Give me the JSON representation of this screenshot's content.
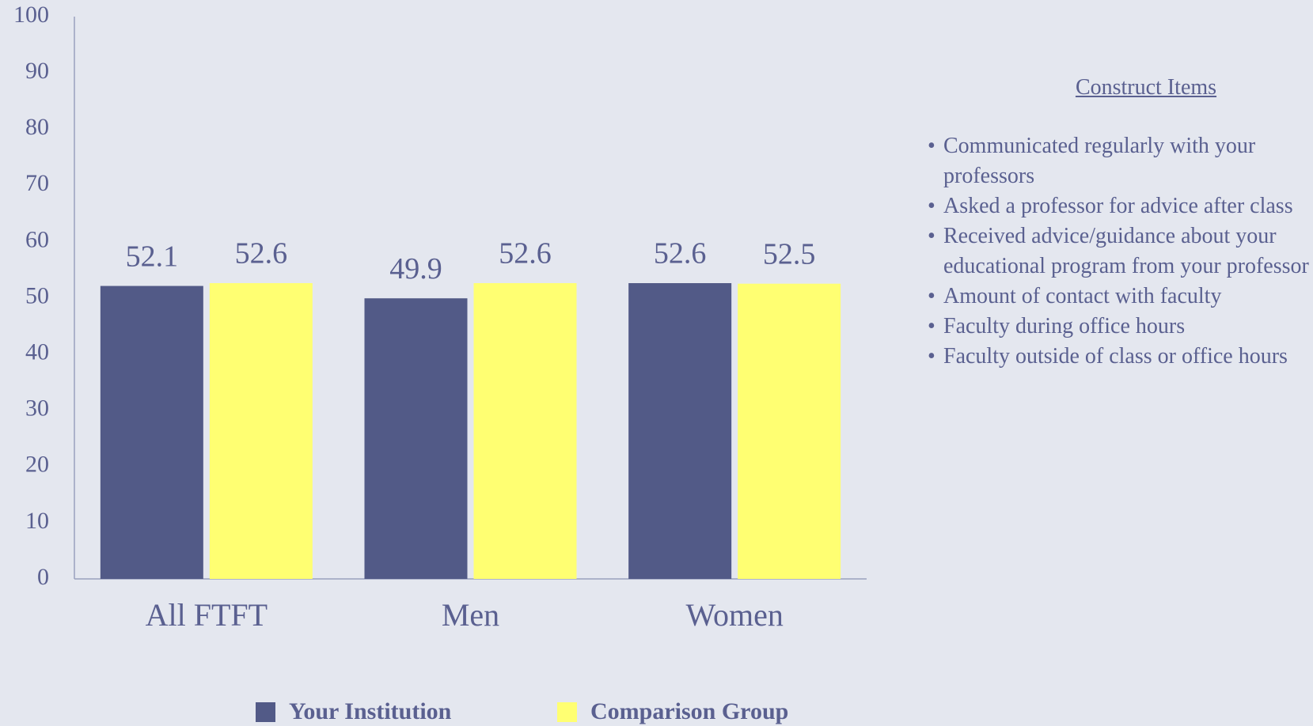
{
  "chart_data": {
    "type": "bar",
    "categories": [
      "All FTFT",
      "Men",
      "Women"
    ],
    "series": [
      {
        "name": "Your Institution",
        "color": "#525a87",
        "values": [
          52.1,
          49.9,
          52.6
        ]
      },
      {
        "name": "Comparison Group",
        "color": "#ffff72",
        "values": [
          52.6,
          52.6,
          52.5
        ]
      }
    ],
    "ylim": [
      0,
      100
    ],
    "yticks": [
      0,
      10,
      20,
      30,
      40,
      50,
      60,
      70,
      80,
      90,
      100
    ],
    "grid": false
  },
  "panel": {
    "title": "Construct Items",
    "items": [
      "Communicated regularly with your professors",
      "Asked a professor for advice after class",
      "Received advice/guidance about your educational program from your professor",
      "Amount of contact with faculty",
      "Faculty during office hours",
      "Faculty outside of class or office hours"
    ]
  }
}
